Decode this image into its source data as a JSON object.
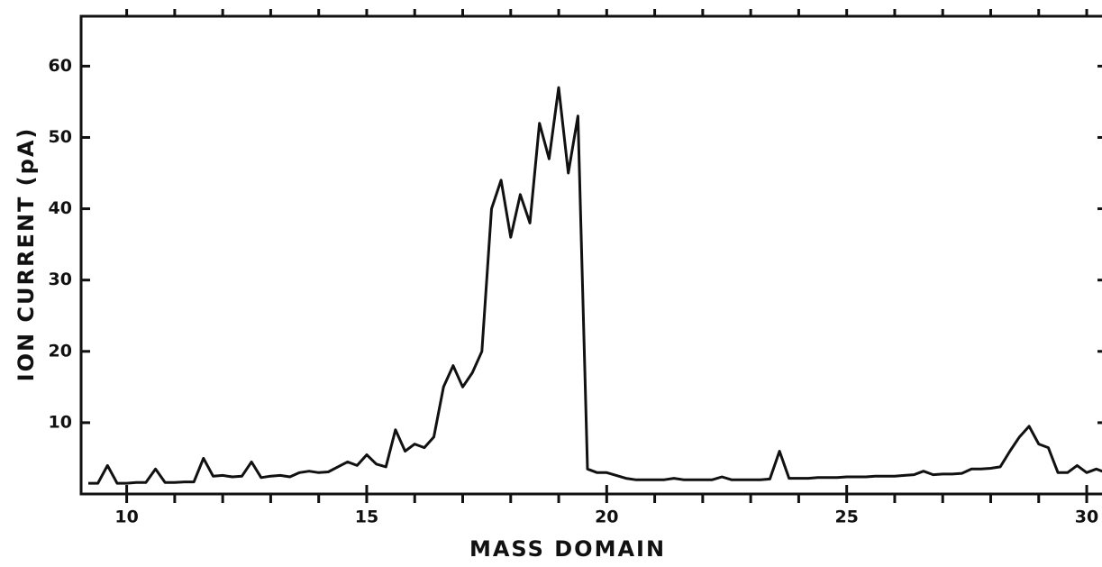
{
  "chart_data": {
    "type": "line",
    "x_label": "MASS DOMAIN",
    "y_label": "ION CURRENT (pA)",
    "x": [
      9.2,
      9.4,
      9.6,
      9.8,
      10.0,
      10.2,
      10.4,
      10.6,
      10.8,
      11.0,
      11.2,
      11.4,
      11.6,
      11.8,
      12.0,
      12.2,
      12.4,
      12.6,
      12.8,
      13.0,
      13.2,
      13.4,
      13.6,
      13.8,
      14.0,
      14.2,
      14.4,
      14.6,
      14.8,
      15.0,
      15.2,
      15.4,
      15.6,
      15.8,
      16.0,
      16.2,
      16.4,
      16.6,
      16.8,
      17.0,
      17.2,
      17.4,
      17.6,
      17.8,
      18.0,
      18.2,
      18.4,
      18.6,
      18.8,
      19.0,
      19.2,
      19.4,
      19.6,
      19.8,
      20.0,
      20.2,
      20.4,
      20.6,
      20.8,
      21.0,
      21.2,
      21.4,
      21.6,
      21.8,
      22.0,
      22.2,
      22.4,
      22.6,
      22.8,
      23.0,
      23.2,
      23.4,
      23.6,
      23.8,
      24.0,
      24.2,
      24.4,
      24.6,
      24.8,
      25.0,
      25.2,
      25.4,
      25.6,
      25.8,
      26.0,
      26.2,
      26.4,
      26.6,
      26.8,
      27.0,
      27.2,
      27.4,
      27.6,
      27.8,
      28.0,
      28.2,
      28.4,
      28.6,
      28.8,
      29.0,
      29.2,
      29.4,
      29.6,
      29.8,
      30.0,
      30.2,
      30.4
    ],
    "series": [
      {
        "color": "#111111",
        "values": [
          1.5,
          1.5,
          4,
          1.5,
          1.5,
          1.6,
          1.6,
          3.5,
          1.6,
          1.6,
          1.7,
          1.7,
          5,
          2.5,
          2.6,
          2.4,
          2.5,
          4.5,
          2.3,
          2.5,
          2.6,
          2.4,
          3,
          3.2,
          3,
          3.1,
          3.8,
          4.5,
          4,
          5.5,
          4.2,
          3.8,
          9,
          6,
          7,
          6.5,
          8,
          15,
          18,
          15,
          17,
          20,
          40,
          44,
          36,
          42,
          38,
          52,
          47,
          57,
          45,
          53,
          3.5,
          3,
          3,
          2.6,
          2.2,
          2,
          2,
          2,
          2,
          2.2,
          2,
          2,
          2,
          2,
          2.4,
          2,
          2,
          2,
          2,
          2.1,
          6,
          2.2,
          2.2,
          2.2,
          2.3,
          2.3,
          2.3,
          2.4,
          2.4,
          2.4,
          2.5,
          2.5,
          2.5,
          2.6,
          2.7,
          3.2,
          2.7,
          2.8,
          2.8,
          2.9,
          3.5,
          3.5,
          3.6,
          3.8,
          6,
          8,
          9.5,
          7,
          6.5,
          3,
          3,
          4,
          3,
          3.5,
          3
        ]
      }
    ],
    "xlim": [
      9.05,
      30.45
    ],
    "ylim": [
      0,
      67
    ],
    "xticks": [
      10,
      15,
      20,
      25,
      30
    ],
    "xminorticks": [
      10,
      11,
      12,
      13,
      14,
      15,
      16,
      17,
      18,
      19,
      20,
      21,
      22,
      23,
      24,
      25,
      26,
      27,
      28,
      29,
      30
    ],
    "yticks": [
      10,
      20,
      30,
      40,
      50,
      60
    ],
    "grid": false
  }
}
